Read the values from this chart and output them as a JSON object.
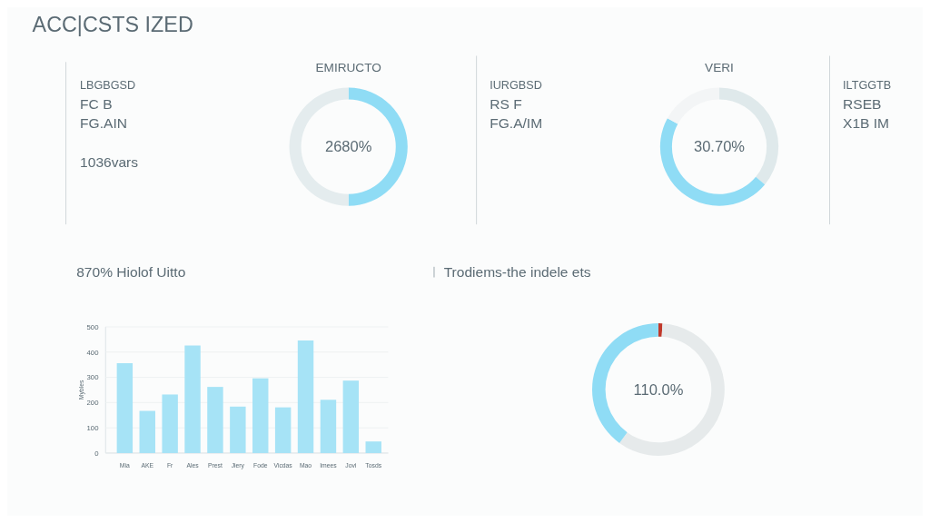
{
  "chart_data": [
    {
      "type": "other",
      "title": "ACC|CSTS IZED"
    },
    {
      "type": "donut",
      "title": "EMIRUCTO",
      "categories": [
        null,
        null
      ],
      "values": [
        50,
        50
      ],
      "colors": [
        "#8fdcf5",
        "#e4ecee"
      ],
      "annotations": [
        "LBGBGSD",
        "FC B",
        "FG.AIN",
        "1036vars",
        "2680%"
      ]
    },
    {
      "type": "donut",
      "title": "VERI",
      "categories": [
        null,
        null,
        null
      ],
      "values": [
        36,
        47,
        17
      ],
      "colors": [
        "#dfe9eb",
        "#8fdcf5",
        "#f3f5f6"
      ],
      "annotations": [
        "IURGBSD",
        "RS F",
        "FG.A/IM",
        "30.70%",
        "ILTGGTB",
        "RSEB",
        "X1B IM"
      ]
    },
    {
      "type": "bar",
      "title": "870% Hiolof Uitto",
      "ylabel": "Mybles",
      "categories": [
        "Mia",
        "AKE",
        "Fr",
        "Ales",
        "Prest",
        "Jiery",
        "Fode",
        "Vicdas",
        "Mao",
        "Imees",
        "Jovi",
        "Tosds"
      ],
      "values": [
        356,
        167,
        232,
        426,
        262,
        184,
        296,
        181,
        446,
        211,
        287,
        46
      ],
      "color": "#a6e3f6",
      "ylim": [
        0,
        500
      ],
      "yticks": [
        0,
        100,
        200,
        300,
        400,
        500
      ],
      "grid": "y"
    },
    {
      "type": "donut",
      "title": "Trodiems-the indele ets",
      "categories": [
        null,
        null,
        null
      ],
      "values": [
        1,
        59,
        40
      ],
      "colors": [
        "#c0392b",
        "#e6eaeb",
        "#8fdcf5"
      ],
      "annotations": [
        "110.0%"
      ]
    }
  ]
}
